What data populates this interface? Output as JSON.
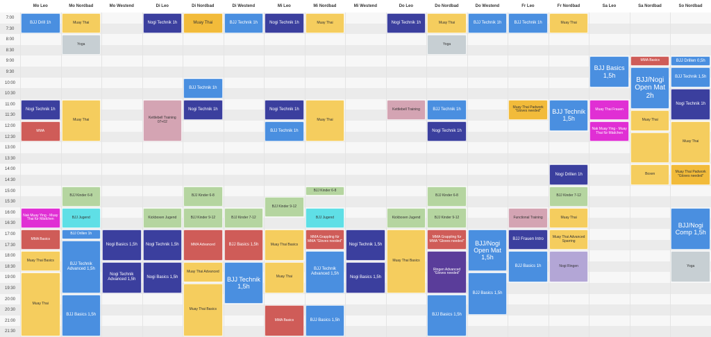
{
  "columns": [
    "Mo Leo",
    "Mo Nordbad",
    "Mo Westend",
    "Di Leo",
    "Di Nordbad",
    "Di Westend",
    "Mi Leo",
    "Mi Nordbad",
    "Mi Westend",
    "Do Leo",
    "Do Nordbad",
    "Do Westend",
    "Fr Leo",
    "Fr Nordbad",
    "Sa Leo",
    "Sa Nordbad",
    "So Nordbad"
  ],
  "times": [
    "7:00",
    "7:30",
    "8:00",
    "8:30",
    "9:00",
    "9:30",
    "10:00",
    "10:30",
    "11:00",
    "11:30",
    "12:00",
    "12:30",
    "13:00",
    "13:30",
    "14:00",
    "14:30",
    "15:00",
    "15:30",
    "16:00",
    "16:30",
    "17:00",
    "17:30",
    "18:00",
    "18:30",
    "19:00",
    "19:30",
    "20:00",
    "20:30",
    "21:00",
    "21:30"
  ],
  "colors": {
    "blue": "#4a8fe0",
    "yellow": "#f5cd5e",
    "grey": "#c7cfd3",
    "navy": "#3b3f9e",
    "pink": "#d4a4b3",
    "red": "#cf5c58",
    "green": "#b5d5a0",
    "cyan": "#5fdfe6",
    "magenta": "#e02fd4",
    "purple": "#5a3d9a",
    "lavender": "#b3a6d6",
    "amber": "#f2bb3a"
  },
  "events": [
    {
      "col": 0,
      "start": 0,
      "end": 2,
      "label": "BJJ Drill 1h",
      "color": "blue",
      "size": 6
    },
    {
      "col": 1,
      "start": 0,
      "end": 2,
      "label": "Muay Thai",
      "color": "yellow",
      "size": 5
    },
    {
      "col": 1,
      "start": 2,
      "end": 4,
      "label": "Yoga",
      "color": "grey",
      "size": 5
    },
    {
      "col": 3,
      "start": 0,
      "end": 2,
      "label": "Nogi Technik 1h",
      "color": "navy",
      "size": 6
    },
    {
      "col": 4,
      "start": 0,
      "end": 2,
      "label": "Muay Thai",
      "color": "amber",
      "size": 6
    },
    {
      "col": 5,
      "start": 0,
      "end": 2,
      "label": "BJJ Technik 1h",
      "color": "blue",
      "size": 6
    },
    {
      "col": 6,
      "start": 0,
      "end": 2,
      "label": "Nogi Technik 1h",
      "color": "navy",
      "size": 6
    },
    {
      "col": 7,
      "start": 0,
      "end": 2,
      "label": "Muay Thai",
      "color": "yellow",
      "size": 5
    },
    {
      "col": 9,
      "start": 0,
      "end": 2,
      "label": "Nogi Technik 1h",
      "color": "navy",
      "size": 6
    },
    {
      "col": 10,
      "start": 0,
      "end": 2,
      "label": "Muay Thai",
      "color": "yellow",
      "size": 5
    },
    {
      "col": 10,
      "start": 2,
      "end": 4,
      "label": "Yoga",
      "color": "grey",
      "size": 5
    },
    {
      "col": 11,
      "start": 0,
      "end": 2,
      "label": "BJJ Technik 1h",
      "color": "blue",
      "size": 6
    },
    {
      "col": 12,
      "start": 0,
      "end": 2,
      "label": "BJJ Technik 1h",
      "color": "blue",
      "size": 6
    },
    {
      "col": 13,
      "start": 0,
      "end": 2,
      "label": "Muay Thai",
      "color": "yellow",
      "size": 5
    },
    {
      "col": 14,
      "start": 4,
      "end": 7,
      "label": "BJJ Basics 1,5h",
      "color": "blue",
      "size": 9
    },
    {
      "col": 15,
      "start": 4,
      "end": 5,
      "label": "MMA Basics",
      "color": "red",
      "size": 5
    },
    {
      "col": 15,
      "start": 5,
      "end": 9,
      "label": "BJJ/Nogi Open Mat 2h",
      "color": "blue",
      "size": 10
    },
    {
      "col": 16,
      "start": 4,
      "end": 5,
      "label": "BJJ Drillen 0,5h",
      "color": "blue",
      "size": 6
    },
    {
      "col": 16,
      "start": 5,
      "end": 7,
      "label": "BJJ Technik 1,5h",
      "color": "blue",
      "size": 6
    },
    {
      "col": 4,
      "start": 6,
      "end": 8,
      "label": "BJJ Technik 1h",
      "color": "blue",
      "size": 6
    },
    {
      "col": 0,
      "start": 8,
      "end": 10,
      "label": "Nogi Technik 1h",
      "color": "navy",
      "size": 6
    },
    {
      "col": 0,
      "start": 10,
      "end": 12,
      "label": "MMA",
      "color": "red",
      "size": 5
    },
    {
      "col": 1,
      "start": 8,
      "end": 12,
      "label": "Muay Thai",
      "color": "yellow",
      "size": 5
    },
    {
      "col": 3,
      "start": 8,
      "end": 12,
      "label": "Kettlebell Training 07+02",
      "color": "pink",
      "size": 5
    },
    {
      "col": 4,
      "start": 8,
      "end": 10,
      "label": "Nogi Technik 1h",
      "color": "navy",
      "size": 6
    },
    {
      "col": 6,
      "start": 8,
      "end": 10,
      "label": "Nogi Technik 1h",
      "color": "navy",
      "size": 6
    },
    {
      "col": 6,
      "start": 10,
      "end": 12,
      "label": "BJJ Technik 1h",
      "color": "blue",
      "size": 6
    },
    {
      "col": 7,
      "start": 8,
      "end": 12,
      "label": "Muay Thai",
      "color": "yellow",
      "size": 5
    },
    {
      "col": 9,
      "start": 8,
      "end": 10,
      "label": "Kettlebell Training",
      "color": "pink",
      "size": 5
    },
    {
      "col": 10,
      "start": 8,
      "end": 10,
      "label": "BJJ Technik 1h",
      "color": "blue",
      "size": 6
    },
    {
      "col": 10,
      "start": 10,
      "end": 12,
      "label": "Nogi Technik 1h",
      "color": "navy",
      "size": 6
    },
    {
      "col": 12,
      "start": 8,
      "end": 10,
      "label": "Muay Thai Padwork \"Gloves needed\"",
      "color": "amber",
      "size": 5
    },
    {
      "col": 13,
      "start": 8,
      "end": 11,
      "label": "BJJ Technik 1,5h",
      "color": "blue",
      "size": 9
    },
    {
      "col": 14,
      "start": 8,
      "end": 10,
      "label": "Muay Thai Frauen",
      "color": "magenta",
      "size": 5
    },
    {
      "col": 14,
      "start": 10,
      "end": 12,
      "label": "Nak Muay Ying - Muay Thai für Mädchen",
      "color": "magenta",
      "size": 5
    },
    {
      "col": 15,
      "start": 9,
      "end": 11,
      "label": "Muay Thai",
      "color": "yellow",
      "size": 5
    },
    {
      "col": 15,
      "start": 11,
      "end": 14,
      "label": "",
      "color": "yellow",
      "size": 5
    },
    {
      "col": 15,
      "start": 14,
      "end": 16,
      "label": "Boxen",
      "color": "yellow",
      "size": 5
    },
    {
      "col": 16,
      "start": 7,
      "end": 10,
      "label": "Nogi Technik 1h",
      "color": "navy",
      "size": 6
    },
    {
      "col": 16,
      "start": 10,
      "end": 14,
      "label": "Muay Thai",
      "color": "yellow",
      "size": 5
    },
    {
      "col": 16,
      "start": 14,
      "end": 16,
      "label": "Muay Thai Padwork \"Gloves needed\"",
      "color": "amber",
      "size": 5
    },
    {
      "col": 13,
      "start": 14,
      "end": 16,
      "label": "Nogi Drillen 1h",
      "color": "navy",
      "size": 6
    },
    {
      "col": 1,
      "start": 16,
      "end": 18,
      "label": "BJJ Kinder 6-8",
      "color": "green",
      "size": 5
    },
    {
      "col": 4,
      "start": 16,
      "end": 18,
      "label": "BJJ Kinder 6-8",
      "color": "green",
      "size": 5
    },
    {
      "col": 7,
      "start": 16,
      "end": 17,
      "label": "BJJ Kinder 6-8",
      "color": "green",
      "size": 5
    },
    {
      "col": 10,
      "start": 16,
      "end": 18,
      "label": "BJJ Kinder 6-8",
      "color": "green",
      "size": 5
    },
    {
      "col": 13,
      "start": 16,
      "end": 18,
      "label": "BJJ Kinder 7-12",
      "color": "green",
      "size": 5
    },
    {
      "col": 6,
      "start": 17,
      "end": 19,
      "label": "BJJ Kinder 9-12",
      "color": "green",
      "size": 5
    },
    {
      "col": 0,
      "start": 18,
      "end": 20,
      "label": "Nak Muay Ying - Muay Thai für Mädchen",
      "color": "magenta",
      "size": 5
    },
    {
      "col": 1,
      "start": 18,
      "end": 20,
      "label": "BJJ Jugend",
      "color": "cyan",
      "size": 5
    },
    {
      "col": 3,
      "start": 18,
      "end": 20,
      "label": "Kickboxen Jugend",
      "color": "green",
      "size": 5
    },
    {
      "col": 4,
      "start": 18,
      "end": 20,
      "label": "BJJ Kinder 9-12",
      "color": "green",
      "size": 5
    },
    {
      "col": 5,
      "start": 18,
      "end": 20,
      "label": "BJJ Kinder 7-12",
      "color": "green",
      "size": 5
    },
    {
      "col": 7,
      "start": 18,
      "end": 20,
      "label": "BJJ Jugend",
      "color": "cyan",
      "size": 5
    },
    {
      "col": 9,
      "start": 18,
      "end": 20,
      "label": "Kickboxen Jugend",
      "color": "green",
      "size": 5
    },
    {
      "col": 10,
      "start": 18,
      "end": 20,
      "label": "BJJ Kinder 9-12",
      "color": "green",
      "size": 5
    },
    {
      "col": 12,
      "start": 18,
      "end": 20,
      "label": "Functional Training",
      "color": "pink",
      "size": 5
    },
    {
      "col": 13,
      "start": 18,
      "end": 20,
      "label": "Muay Thai",
      "color": "yellow",
      "size": 5
    },
    {
      "col": 16,
      "start": 18,
      "end": 22,
      "label": "BJJ/Nogi Comp 1,5h",
      "color": "blue",
      "size": 9
    },
    {
      "col": 0,
      "start": 20,
      "end": 22,
      "label": "MMA Basics",
      "color": "red",
      "size": 5
    },
    {
      "col": 0,
      "start": 22,
      "end": 24,
      "label": "Muay Thai Basics",
      "color": "yellow",
      "size": 5
    },
    {
      "col": 0,
      "start": 24,
      "end": 30,
      "label": "Muay Thai",
      "color": "yellow",
      "size": 5
    },
    {
      "col": 1,
      "start": 20,
      "end": 21,
      "label": "BJJ Drillen 1h",
      "color": "blue",
      "size": 5
    },
    {
      "col": 1,
      "start": 21,
      "end": 26,
      "label": "BJJ Technik Advanced 1,5h",
      "color": "blue",
      "size": 6
    },
    {
      "col": 1,
      "start": 26,
      "end": 30,
      "label": "BJJ Basics 1,5h",
      "color": "blue",
      "size": 6
    },
    {
      "col": 2,
      "start": 20,
      "end": 23,
      "label": "Nogi Basics 1,5h",
      "color": "navy",
      "size": 6
    },
    {
      "col": 2,
      "start": 23,
      "end": 26,
      "label": "Nogi Technik Advanced 1,5h",
      "color": "navy",
      "size": 6
    },
    {
      "col": 3,
      "start": 20,
      "end": 23,
      "label": "Nogi Technik 1,5h",
      "color": "navy",
      "size": 6
    },
    {
      "col": 3,
      "start": 23,
      "end": 26,
      "label": "Nogi Basics 1,5h",
      "color": "navy",
      "size": 6
    },
    {
      "col": 4,
      "start": 20,
      "end": 23,
      "label": "MMA Advanced",
      "color": "red",
      "size": 5
    },
    {
      "col": 4,
      "start": 23,
      "end": 25,
      "label": "Muay Thai Advanced",
      "color": "yellow",
      "size": 5
    },
    {
      "col": 4,
      "start": 25,
      "end": 30,
      "label": "Muay Thai Basics",
      "color": "yellow",
      "size": 5
    },
    {
      "col": 5,
      "start": 20,
      "end": 23,
      "label": "BJJ Basics 1,5h",
      "color": "red",
      "size": 6
    },
    {
      "col": 5,
      "start": 23,
      "end": 27,
      "label": "BJJ Technik 1,5h",
      "color": "blue",
      "size": 9
    },
    {
      "col": 6,
      "start": 20,
      "end": 23,
      "label": "Muay Thai Basics",
      "color": "yellow",
      "size": 5
    },
    {
      "col": 6,
      "start": 23,
      "end": 26,
      "label": "Muay Thai",
      "color": "yellow",
      "size": 5
    },
    {
      "col": 6,
      "start": 27,
      "end": 30,
      "label": "MMA Basics",
      "color": "red",
      "size": 5
    },
    {
      "col": 7,
      "start": 20,
      "end": 22,
      "label": "MMA Grappling für MMA \"Gloves needed\"",
      "color": "red",
      "size": 5
    },
    {
      "col": 7,
      "start": 22,
      "end": 26,
      "label": "BJJ Technik Advanced 1,5h",
      "color": "blue",
      "size": 6
    },
    {
      "col": 7,
      "start": 27,
      "end": 30,
      "label": "BJJ Basics 1,5h",
      "color": "blue",
      "size": 6
    },
    {
      "col": 8,
      "start": 20,
      "end": 23,
      "label": "Nogi Technik 1,5h",
      "color": "navy",
      "size": 6
    },
    {
      "col": 8,
      "start": 23,
      "end": 26,
      "label": "Nogi Basics 1,5h",
      "color": "navy",
      "size": 6
    },
    {
      "col": 9,
      "start": 20,
      "end": 26,
      "label": "Muay Thai Basics",
      "color": "yellow",
      "size": 5
    },
    {
      "col": 10,
      "start": 20,
      "end": 22,
      "label": "MMA Grappling für MMA \"Gloves needed\"",
      "color": "red",
      "size": 5
    },
    {
      "col": 10,
      "start": 22,
      "end": 26,
      "label": "Ringen Advanced \"Gloves needed\"",
      "color": "purple",
      "size": 5
    },
    {
      "col": 10,
      "start": 26,
      "end": 30,
      "label": "BJJ Basics 1,5h",
      "color": "blue",
      "size": 6
    },
    {
      "col": 11,
      "start": 20,
      "end": 24,
      "label": "BJJ/Nogi Open Mat 1,5h",
      "color": "blue",
      "size": 9
    },
    {
      "col": 11,
      "start": 24,
      "end": 28,
      "label": "BJJ Basics 1,5h",
      "color": "blue",
      "size": 6
    },
    {
      "col": 12,
      "start": 20,
      "end": 22,
      "label": "BJJ Frauen Intro",
      "color": "navy",
      "size": 6
    },
    {
      "col": 12,
      "start": 22,
      "end": 25,
      "label": "BJJ Basics 1h",
      "color": "blue",
      "size": 6
    },
    {
      "col": 13,
      "start": 20,
      "end": 22,
      "label": "Muay Thai Advanced Sparring",
      "color": "yellow",
      "size": 5
    },
    {
      "col": 13,
      "start": 22,
      "end": 25,
      "label": "Nogi Ringen",
      "color": "lavender",
      "size": 5
    },
    {
      "col": 16,
      "start": 22,
      "end": 25,
      "label": "Yoga",
      "color": "grey",
      "size": 5
    }
  ]
}
